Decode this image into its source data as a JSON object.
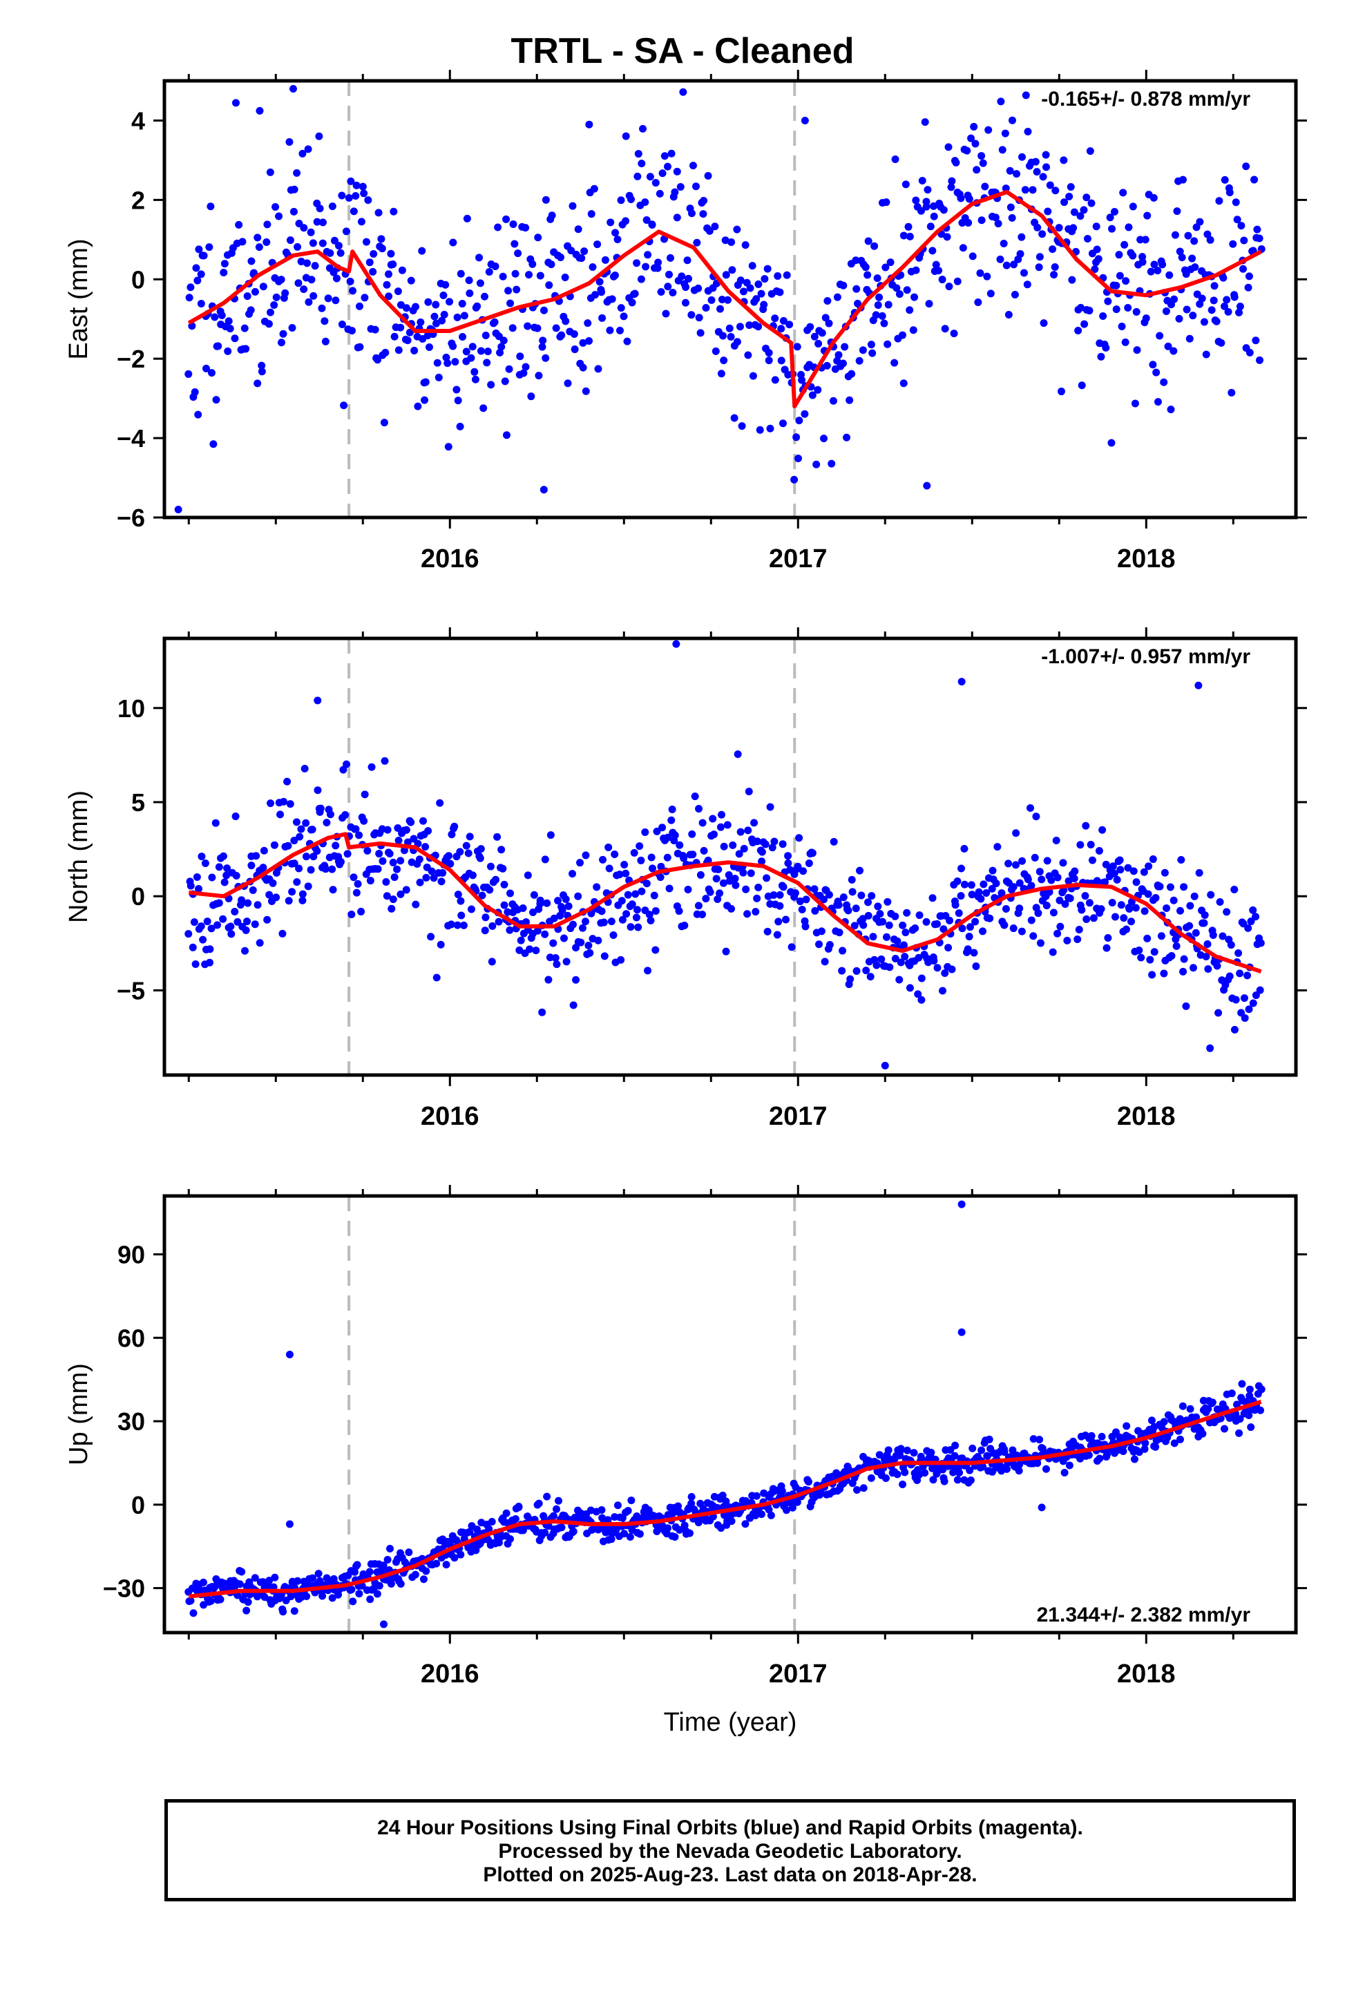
{
  "title": "TRTL  - SA - Cleaned",
  "colors": {
    "final_orbits": "#0000ff",
    "rapid_orbits": "#ff00ff",
    "model": "#ff0000",
    "offset_line": "#bbbbbb"
  },
  "footer": {
    "line1": "24 Hour Positions Using Final Orbits (blue) and Rapid Orbits (magenta).",
    "line2": "Processed by the Nevada Geodetic Laboratory.",
    "line3": "Plotted on 2025-Aug-23. Last data on 2018-Apr-28."
  },
  "chart_data": [
    {
      "type": "scatter",
      "panel": "east",
      "ylabel": "East (mm)",
      "xlabel": "",
      "xlim": [
        2015.18,
        2018.43
      ],
      "ylim": [
        -6,
        5
      ],
      "xticks": [
        2016,
        2017,
        2018
      ],
      "yticks": [
        -6,
        -4,
        -2,
        0,
        2,
        4
      ],
      "rate_label": "-0.165+/- 0.878 mm/yr",
      "rate_position": "top-right",
      "offset_lines_x": [
        2015.71,
        2016.99
      ],
      "model_x": [
        2015.25,
        2015.35,
        2015.45,
        2015.55,
        2015.62,
        2015.68,
        2015.71,
        2015.72,
        2015.8,
        2015.9,
        2016.0,
        2016.1,
        2016.2,
        2016.3,
        2016.4,
        2016.5,
        2016.6,
        2016.7,
        2016.8,
        2016.9,
        2016.98,
        2016.99,
        2017.1,
        2017.2,
        2017.3,
        2017.4,
        2017.5,
        2017.6,
        2017.7,
        2017.8,
        2017.9,
        2018.0,
        2018.1,
        2018.2,
        2018.33
      ],
      "model_y": [
        -1.1,
        -0.6,
        0.1,
        0.6,
        0.7,
        0.3,
        0.2,
        0.7,
        -0.4,
        -1.3,
        -1.3,
        -1.0,
        -0.7,
        -0.5,
        -0.1,
        0.6,
        1.2,
        0.8,
        -0.3,
        -1.1,
        -1.6,
        -3.2,
        -1.6,
        -0.5,
        0.3,
        1.2,
        1.9,
        2.2,
        1.6,
        0.5,
        -0.3,
        -0.4,
        -0.2,
        0.1,
        0.7
      ],
      "points": {
        "count": 900,
        "seed": 11,
        "noise_sd": 1.35,
        "outliers_x": [
          2015.22,
          2015.55,
          2016.4,
          2016.27,
          2017.37,
          2017.02
        ],
        "outliers_y": [
          -5.8,
          4.8,
          3.9,
          -5.3,
          -5.2,
          4.0
        ]
      }
    },
    {
      "type": "scatter",
      "panel": "north",
      "ylabel": "North (mm)",
      "xlabel": "",
      "xlim": [
        2015.18,
        2018.43
      ],
      "ylim": [
        -9.5,
        13.7
      ],
      "xticks": [
        2016,
        2017,
        2018
      ],
      "yticks": [
        -5,
        0,
        5,
        10
      ],
      "rate_label": "-1.007+/- 0.957 mm/yr",
      "rate_position": "top-right",
      "offset_lines_x": [
        2015.71,
        2016.99
      ],
      "model_x": [
        2015.25,
        2015.35,
        2015.45,
        2015.55,
        2015.65,
        2015.7,
        2015.71,
        2015.8,
        2015.9,
        2016.0,
        2016.1,
        2016.2,
        2016.3,
        2016.4,
        2016.5,
        2016.6,
        2016.7,
        2016.8,
        2016.9,
        2017.0,
        2017.1,
        2017.2,
        2017.3,
        2017.4,
        2017.5,
        2017.6,
        2017.7,
        2017.8,
        2017.9,
        2018.0,
        2018.1,
        2018.2,
        2018.33
      ],
      "model_y": [
        0.2,
        0.0,
        1.0,
        2.2,
        3.1,
        3.3,
        2.6,
        2.8,
        2.6,
        1.4,
        -0.5,
        -1.6,
        -1.6,
        -0.7,
        0.5,
        1.3,
        1.6,
        1.8,
        1.6,
        0.7,
        -1.0,
        -2.5,
        -2.9,
        -2.3,
        -1.0,
        0.0,
        0.4,
        0.6,
        0.5,
        -0.4,
        -2.0,
        -3.2,
        -4.0
      ],
      "points": {
        "count": 900,
        "seed": 23,
        "noise_sd": 1.7,
        "outliers_x": [
          2016.65,
          2017.47,
          2018.15,
          2015.62,
          2017.25
        ],
        "outliers_y": [
          13.4,
          11.4,
          11.2,
          10.4,
          -9.0
        ]
      }
    },
    {
      "type": "scatter",
      "panel": "up",
      "ylabel": "Up (mm)",
      "xlabel": "Time (year)",
      "xlim": [
        2015.18,
        2018.43
      ],
      "ylim": [
        -46,
        111
      ],
      "xticks": [
        2016,
        2017,
        2018
      ],
      "yticks": [
        -30,
        0,
        30,
        60,
        90
      ],
      "rate_label": "21.344+/- 2.382 mm/yr",
      "rate_position": "bottom-right",
      "offset_lines_x": [
        2015.71,
        2016.99
      ],
      "model_x": [
        2015.25,
        2015.4,
        2015.55,
        2015.7,
        2015.8,
        2015.9,
        2016.0,
        2016.1,
        2016.2,
        2016.3,
        2016.4,
        2016.5,
        2016.6,
        2016.7,
        2016.8,
        2016.9,
        2016.99,
        2017.1,
        2017.2,
        2017.3,
        2017.4,
        2017.5,
        2017.6,
        2017.7,
        2017.8,
        2017.9,
        2018.0,
        2018.1,
        2018.2,
        2018.33
      ],
      "model_y": [
        -33,
        -31,
        -31,
        -29,
        -26,
        -22,
        -16,
        -11,
        -7,
        -6,
        -7,
        -7,
        -6,
        -4,
        -2,
        0,
        3,
        8,
        13,
        15,
        15,
        15,
        16,
        17,
        19,
        21,
        24,
        28,
        32,
        37
      ],
      "points": {
        "count": 1000,
        "seed": 37,
        "noise_sd": 3.0,
        "outliers_x": [
          2017.47,
          2017.47,
          2015.54,
          2015.54,
          2015.81,
          2017.7
        ],
        "outliers_y": [
          108,
          62,
          54,
          -7,
          -43,
          -1
        ]
      }
    }
  ]
}
